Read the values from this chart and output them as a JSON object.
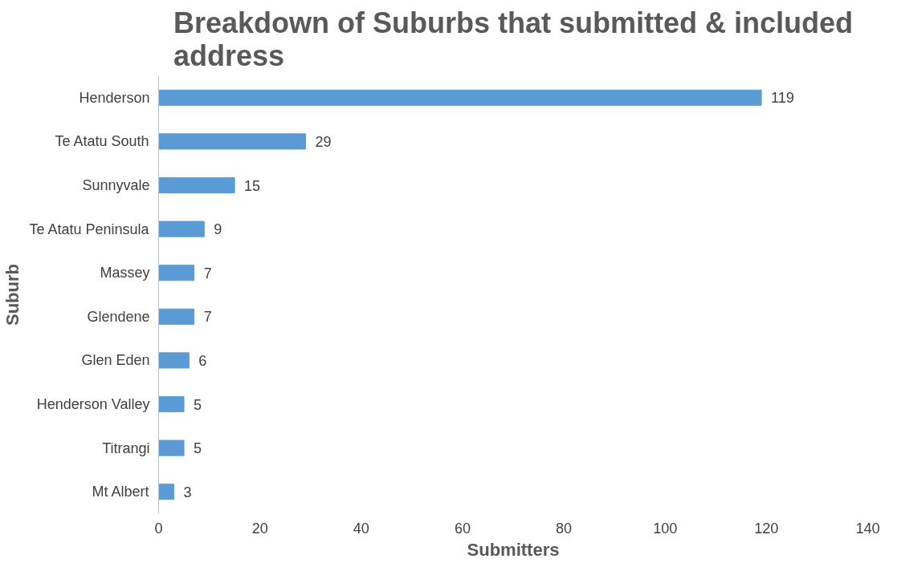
{
  "chart_data": {
    "type": "bar",
    "orientation": "horizontal",
    "title": "Breakdown of Suburbs that submitted & included address",
    "xlabel": "Submitters",
    "ylabel": "Suburb",
    "categories": [
      "Henderson",
      "Te Atatu South",
      "Sunnyvale",
      "Te Atatu Peninsula",
      "Massey",
      "Glendene",
      "Glen Eden",
      "Henderson Valley",
      "Titrangi",
      "Mt Albert"
    ],
    "values": [
      119,
      29,
      15,
      9,
      7,
      7,
      6,
      5,
      5,
      3
    ],
    "color": "#5b9bd5",
    "xlim": [
      0,
      140
    ],
    "xticks": [
      0,
      20,
      40,
      60,
      80,
      100,
      120,
      140
    ],
    "grid": false,
    "data_labels": true
  }
}
